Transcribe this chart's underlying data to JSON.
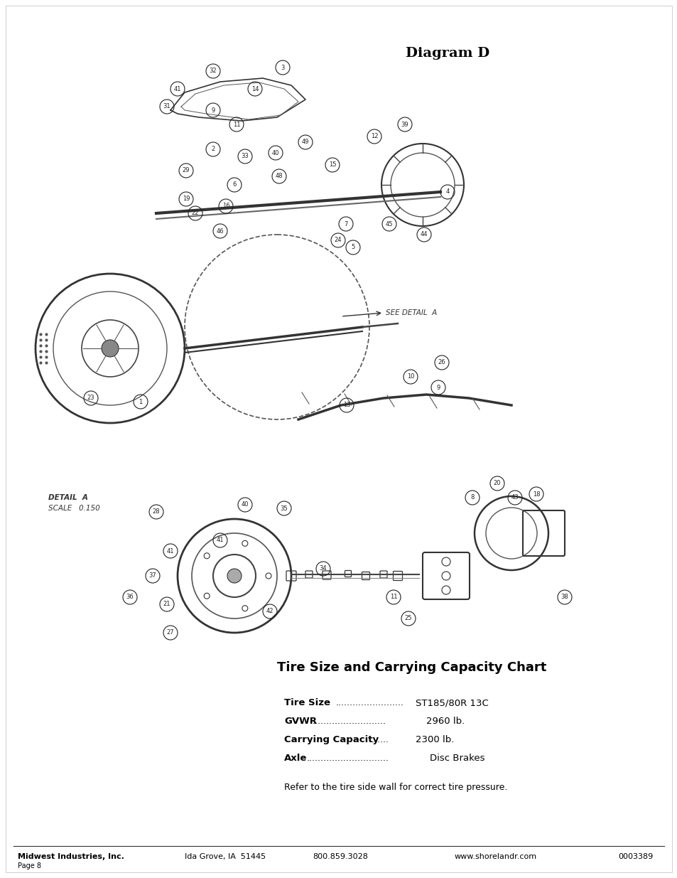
{
  "title": "Diagram D",
  "title_fontsize": 14,
  "title_bold": true,
  "chart_title": "Tire Size and Carrying Capacity Chart",
  "chart_title_fontsize": 13,
  "chart_title_bold": true,
  "chart_items": [
    {
      "label": "Tire Size",
      "dots": "........................",
      "value": "ST185/80R 13C"
    },
    {
      "label": "GVWR",
      "dots": "..........................",
      "value": "2960 lb."
    },
    {
      "label": "Carrying Capacity",
      "dots": ".......",
      "value": "2300 lb."
    },
    {
      "label": "Axle",
      "dots": ".............................",
      "value": "Disc Brakes"
    }
  ],
  "footnote": "Refer to the tire side wall for correct tire pressure.",
  "footnote_fontsize": 9,
  "footer_left1": "Midwest Industries, Inc.",
  "footer_left2": "Page 8",
  "footer_center1": "Ida Grove, IA  51445",
  "footer_center2": "800.859.3028",
  "footer_right1": "www.shorelandr.com",
  "footer_right2": "0003389",
  "footer_fontsize": 8,
  "bg_color": "#ffffff",
  "text_color": "#000000",
  "detail_a_label": "DETAIL  A",
  "scale_label": "SCALE   0.150",
  "see_detail_label": "SEE DETAIL  A",
  "diagram_bg": "#ffffff",
  "border_color": "#cccccc"
}
